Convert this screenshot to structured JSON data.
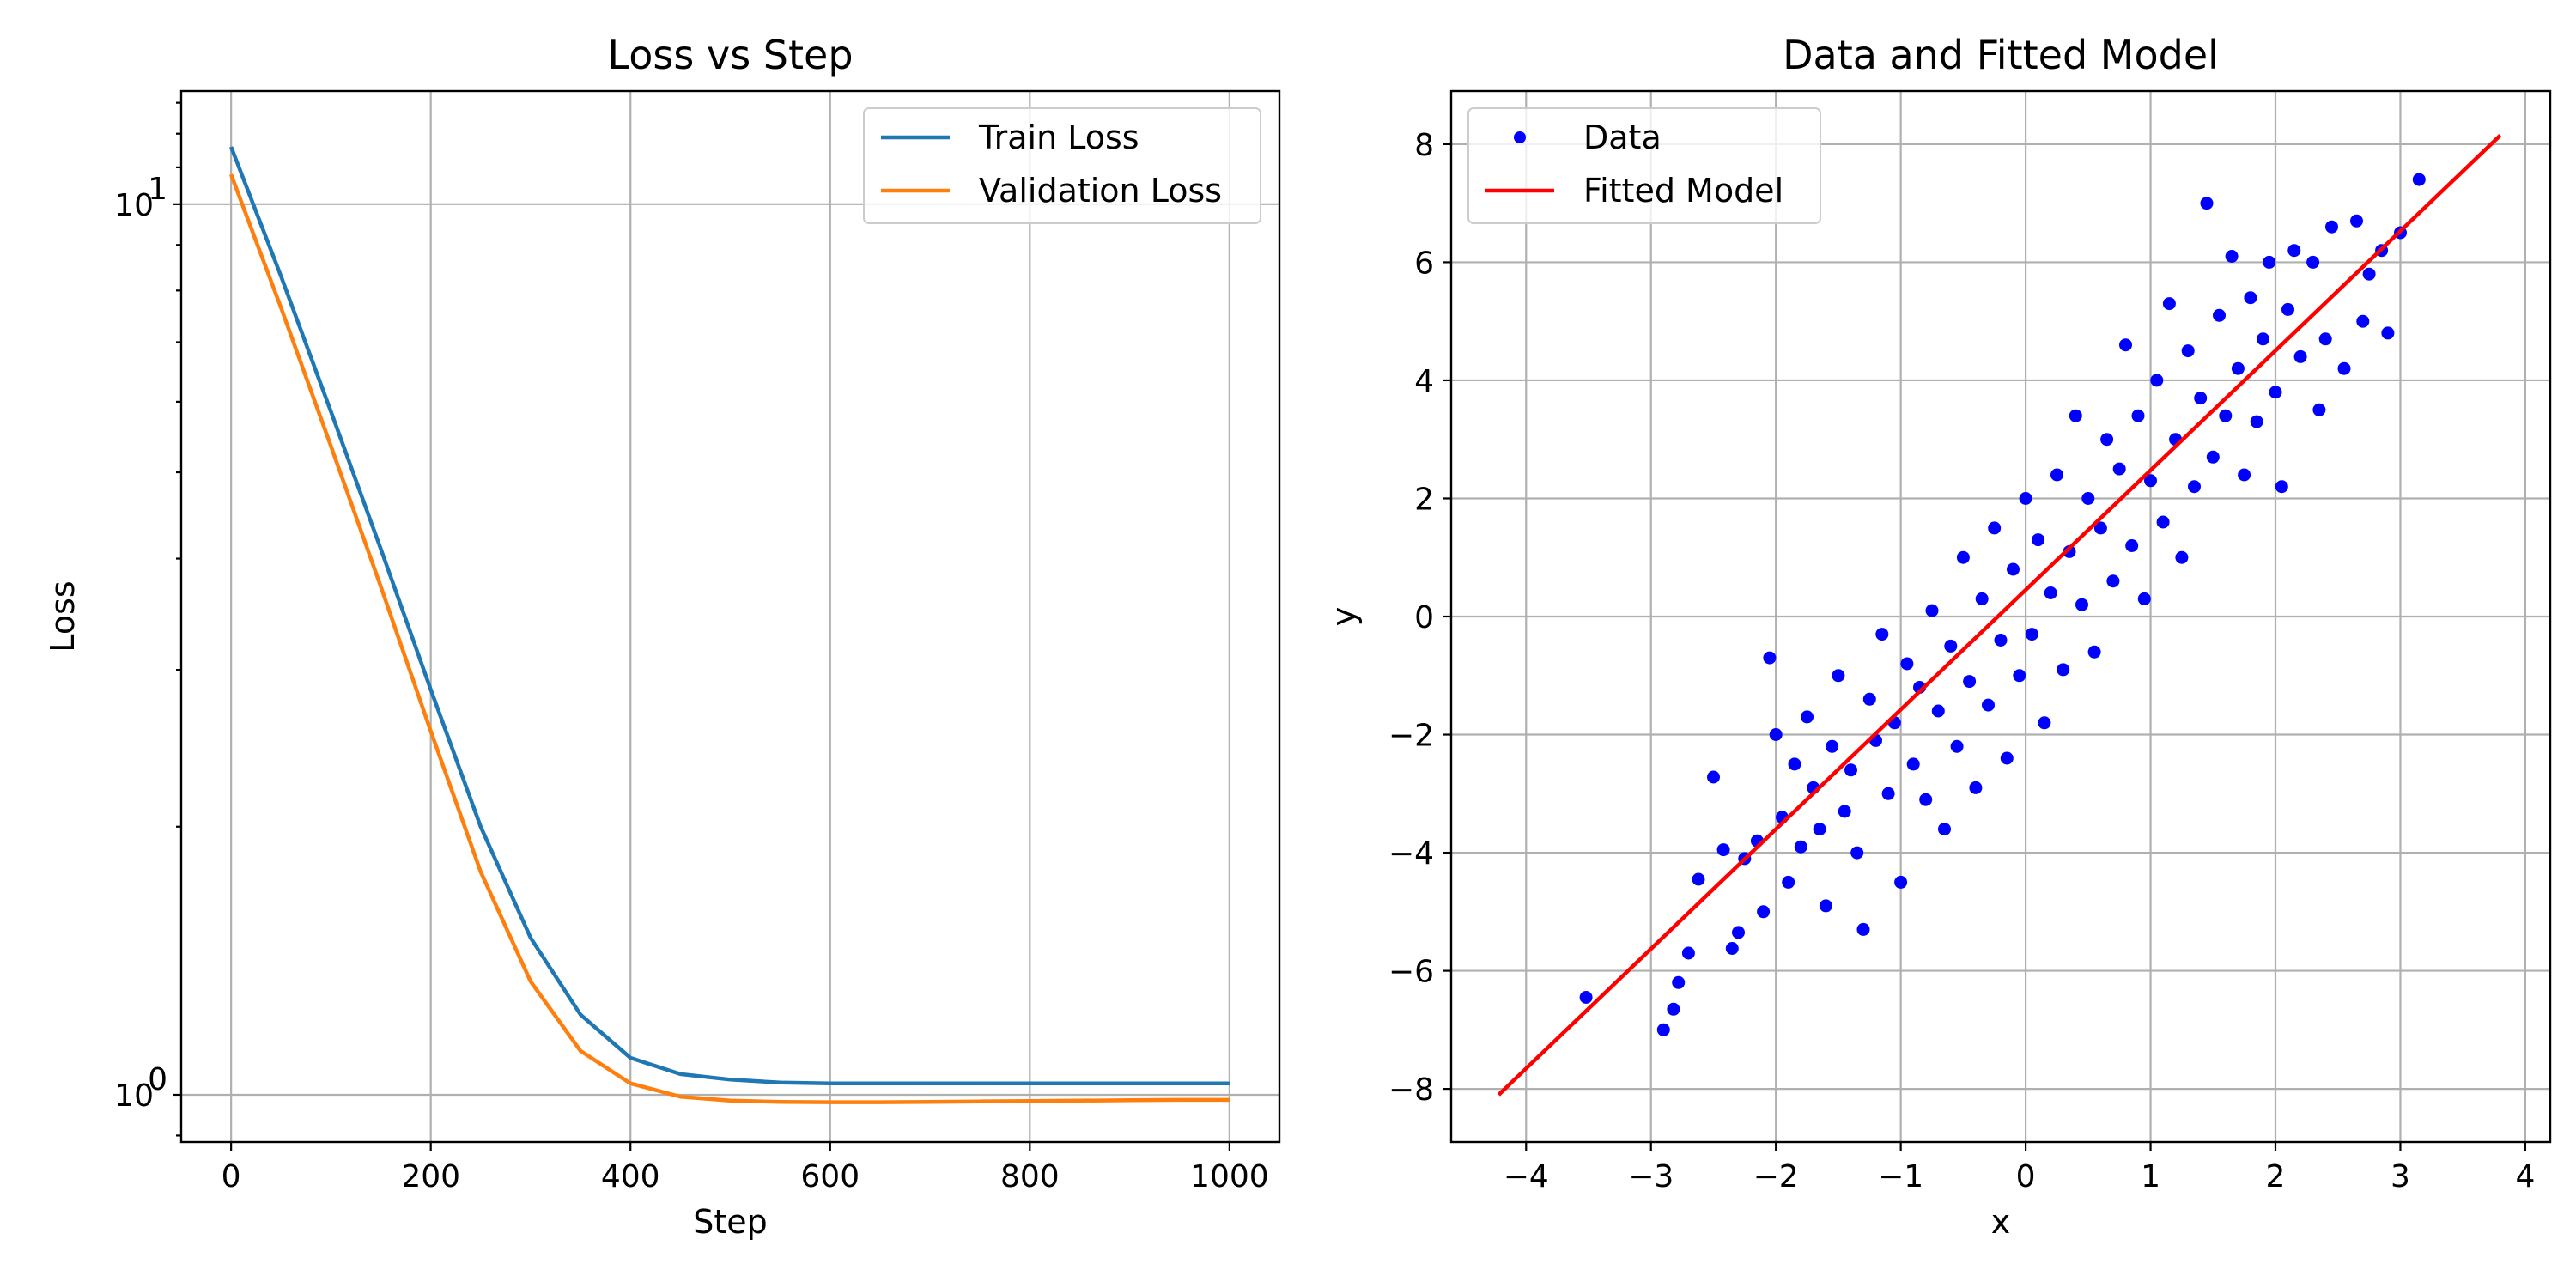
{
  "chart_data": [
    {
      "type": "line",
      "title": "Loss vs Step",
      "xlabel": "Step",
      "ylabel": "Loss",
      "xlim": [
        -50,
        1050
      ],
      "ylim": [
        0.885,
        13.4
      ],
      "yscale": "log",
      "grid": true,
      "legend_position": "top-right",
      "xticks": [
        0,
        200,
        400,
        600,
        800,
        1000
      ],
      "yticks": [
        1,
        10
      ],
      "ytick_labels": [
        {
          "base": "10",
          "exp": "0"
        },
        {
          "base": "10",
          "exp": "1"
        }
      ],
      "series": [
        {
          "name": "Train Loss",
          "color": "#1f77b4",
          "x": [
            0,
            50,
            100,
            150,
            200,
            250,
            300,
            350,
            400,
            450,
            500,
            550,
            600,
            650,
            700,
            750,
            800,
            850,
            900,
            950,
            1000
          ],
          "values": [
            11.6,
            8.3,
            5.85,
            4.1,
            2.85,
            2.0,
            1.5,
            1.23,
            1.1,
            1.055,
            1.04,
            1.032,
            1.03,
            1.03,
            1.03,
            1.03,
            1.03,
            1.03,
            1.03,
            1.03,
            1.03
          ]
        },
        {
          "name": "Validation Loss",
          "color": "#ff7f0e",
          "x": [
            0,
            50,
            100,
            150,
            200,
            250,
            300,
            350,
            400,
            450,
            500,
            550,
            600,
            650,
            700,
            750,
            800,
            850,
            900,
            950,
            1000
          ],
          "values": [
            10.8,
            7.65,
            5.35,
            3.72,
            2.56,
            1.78,
            1.34,
            1.12,
            1.03,
            0.995,
            0.985,
            0.982,
            0.981,
            0.981,
            0.982,
            0.983,
            0.984,
            0.985,
            0.986,
            0.987,
            0.987
          ]
        }
      ]
    },
    {
      "type": "scatter",
      "title": "Data and Fitted Model",
      "xlabel": "x",
      "ylabel": "y",
      "xlim": [
        -4.6,
        4.2
      ],
      "ylim": [
        -8.9,
        8.9
      ],
      "grid": true,
      "legend_position": "top-left",
      "xticks": [
        -4,
        -3,
        -2,
        -1,
        0,
        1,
        2,
        3,
        4
      ],
      "yticks": [
        -8,
        -6,
        -4,
        -2,
        0,
        2,
        4,
        6,
        8
      ],
      "series": [
        {
          "name": "Data",
          "color": "#0000ff",
          "points": [
            [
              -3.52,
              -6.45
            ],
            [
              -2.9,
              -7.0
            ],
            [
              -2.82,
              -6.65
            ],
            [
              -2.78,
              -6.2
            ],
            [
              -2.7,
              -5.7
            ],
            [
              -2.62,
              -4.45
            ],
            [
              -2.5,
              -2.72
            ],
            [
              -2.42,
              -3.95
            ],
            [
              -2.35,
              -5.62
            ],
            [
              -2.3,
              -5.35
            ],
            [
              -2.25,
              -4.1
            ],
            [
              -2.15,
              -3.8
            ],
            [
              -2.1,
              -5.0
            ],
            [
              -2.05,
              -0.7
            ],
            [
              -2.0,
              -2.0
            ],
            [
              -1.95,
              -3.4
            ],
            [
              -1.9,
              -4.5
            ],
            [
              -1.85,
              -2.5
            ],
            [
              -1.8,
              -3.9
            ],
            [
              -1.75,
              -1.7
            ],
            [
              -1.7,
              -2.9
            ],
            [
              -1.65,
              -3.6
            ],
            [
              -1.6,
              -4.9
            ],
            [
              -1.55,
              -2.2
            ],
            [
              -1.5,
              -1.0
            ],
            [
              -1.45,
              -3.3
            ],
            [
              -1.4,
              -2.6
            ],
            [
              -1.35,
              -4.0
            ],
            [
              -1.3,
              -5.3
            ],
            [
              -1.25,
              -1.4
            ],
            [
              -1.2,
              -2.1
            ],
            [
              -1.15,
              -0.3
            ],
            [
              -1.1,
              -3.0
            ],
            [
              -1.05,
              -1.8
            ],
            [
              -1.0,
              -4.5
            ],
            [
              -0.95,
              -0.8
            ],
            [
              -0.9,
              -2.5
            ],
            [
              -0.85,
              -1.2
            ],
            [
              -0.8,
              -3.1
            ],
            [
              -0.75,
              0.1
            ],
            [
              -0.7,
              -1.6
            ],
            [
              -0.65,
              -3.6
            ],
            [
              -0.6,
              -0.5
            ],
            [
              -0.55,
              -2.2
            ],
            [
              -0.5,
              1.0
            ],
            [
              -0.45,
              -1.1
            ],
            [
              -0.4,
              -2.9
            ],
            [
              -0.35,
              0.3
            ],
            [
              -0.3,
              -1.5
            ],
            [
              -0.25,
              1.5
            ],
            [
              -0.2,
              -0.4
            ],
            [
              -0.15,
              -2.4
            ],
            [
              -0.1,
              0.8
            ],
            [
              -0.05,
              -1.0
            ],
            [
              0.0,
              2.0
            ],
            [
              0.05,
              -0.3
            ],
            [
              0.1,
              1.3
            ],
            [
              0.15,
              -1.8
            ],
            [
              0.2,
              0.4
            ],
            [
              0.25,
              2.4
            ],
            [
              0.3,
              -0.9
            ],
            [
              0.35,
              1.1
            ],
            [
              0.4,
              3.4
            ],
            [
              0.45,
              0.2
            ],
            [
              0.5,
              2.0
            ],
            [
              0.55,
              -0.6
            ],
            [
              0.6,
              1.5
            ],
            [
              0.65,
              3.0
            ],
            [
              0.7,
              0.6
            ],
            [
              0.75,
              2.5
            ],
            [
              0.8,
              4.6
            ],
            [
              0.85,
              1.2
            ],
            [
              0.9,
              3.4
            ],
            [
              0.95,
              0.3
            ],
            [
              1.0,
              2.3
            ],
            [
              1.05,
              4.0
            ],
            [
              1.1,
              1.6
            ],
            [
              1.15,
              5.3
            ],
            [
              1.2,
              3.0
            ],
            [
              1.25,
              1.0
            ],
            [
              1.3,
              4.5
            ],
            [
              1.35,
              2.2
            ],
            [
              1.4,
              3.7
            ],
            [
              1.45,
              7.0
            ],
            [
              1.5,
              2.7
            ],
            [
              1.55,
              5.1
            ],
            [
              1.6,
              3.4
            ],
            [
              1.65,
              6.1
            ],
            [
              1.7,
              4.2
            ],
            [
              1.75,
              2.4
            ],
            [
              1.8,
              5.4
            ],
            [
              1.85,
              3.3
            ],
            [
              1.9,
              4.7
            ],
            [
              1.95,
              6.0
            ],
            [
              2.0,
              3.8
            ],
            [
              2.05,
              2.2
            ],
            [
              2.1,
              5.2
            ],
            [
              2.15,
              6.2
            ],
            [
              2.2,
              4.4
            ],
            [
              2.3,
              6.0
            ],
            [
              2.35,
              3.5
            ],
            [
              2.4,
              4.7
            ],
            [
              2.45,
              6.6
            ],
            [
              2.55,
              4.2
            ],
            [
              2.65,
              6.7
            ],
            [
              2.7,
              5.0
            ],
            [
              2.75,
              5.8
            ],
            [
              2.85,
              6.2
            ],
            [
              2.9,
              4.8
            ],
            [
              3.0,
              6.5
            ],
            [
              3.15,
              7.4
            ]
          ]
        },
        {
          "name": "Fitted Model",
          "color": "#ff0000",
          "x": [
            -4.22,
            3.8
          ],
          "values": [
            -8.1,
            8.15
          ]
        }
      ]
    }
  ]
}
